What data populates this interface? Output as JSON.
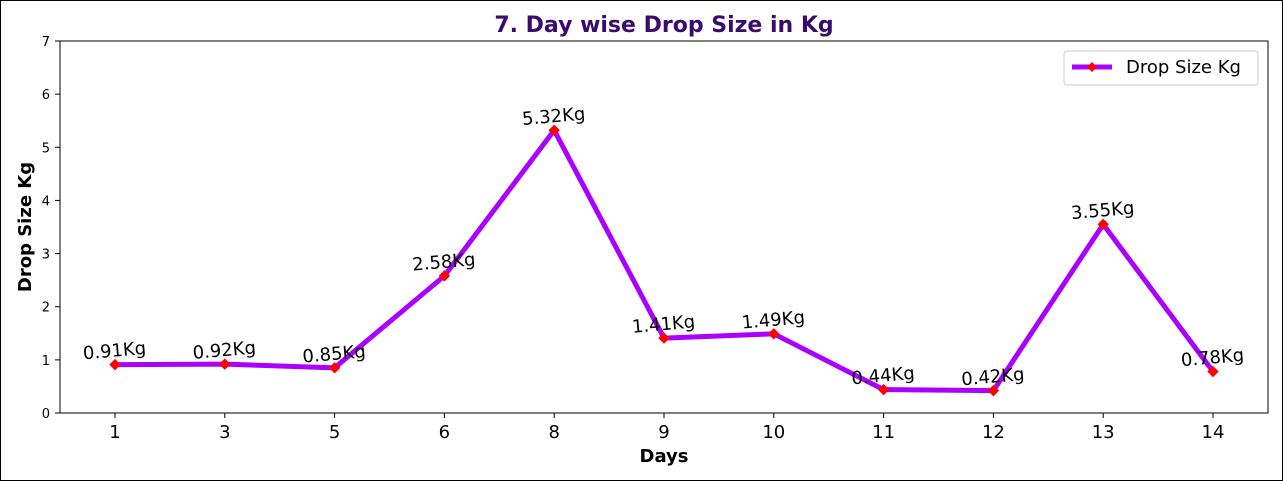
{
  "chart_data": {
    "type": "line",
    "title": "7. Day wise Drop Size in Kg",
    "xlabel": "Days",
    "ylabel": "Drop Size Kg",
    "categories": [
      "1",
      "3",
      "5",
      "6",
      "8",
      "9",
      "10",
      "11",
      "12",
      "13",
      "14"
    ],
    "series": [
      {
        "name": "Drop Size Kg",
        "values": [
          0.91,
          0.92,
          0.85,
          2.58,
          5.32,
          1.41,
          1.49,
          0.44,
          0.42,
          3.55,
          0.78
        ],
        "data_labels": [
          "0.91Kg",
          "0.92Kg",
          "0.85Kg",
          "2.58Kg",
          "5.32Kg",
          "1.41Kg",
          "1.49Kg",
          "0.44Kg",
          "0.42Kg",
          "3.55Kg",
          "0.78Kg"
        ]
      }
    ],
    "ylim": [
      0,
      7
    ],
    "yticks": [
      "0",
      "1",
      "2",
      "3",
      "4",
      "5",
      "6",
      "7"
    ],
    "grid": false,
    "legend_position": "top-right",
    "colors": {
      "line": "#aa00ff",
      "marker": "#ff0000",
      "title": "#3b0a6e",
      "axes": "#000000"
    },
    "marker": "diamond"
  }
}
